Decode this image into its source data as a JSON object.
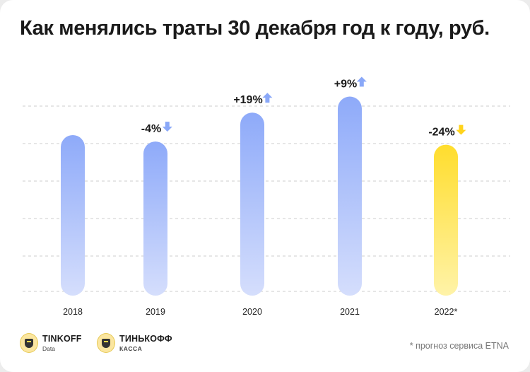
{
  "title": "Как менялись траты 30 декабря год к году, руб.",
  "footnote": "* прогноз сервиса ETNA",
  "logos": [
    {
      "icon": "tinkoff-shield-icon",
      "name": "TINKOFF",
      "sub": "Data"
    },
    {
      "icon": "tinkoff-shield-icon",
      "name": "ТИНЬКОФФ",
      "sub": "КАССА"
    }
  ],
  "colors": {
    "bar_top": "#8eaaf9",
    "bar_bottom": "#d5defc",
    "forecast_top": "#ffdd2d",
    "forecast_bottom": "#fff3a8",
    "up_arrow": "#8aa8f8",
    "down_arrow_blue": "#8aa8f8",
    "down_arrow_yellow": "#ffd31c",
    "grid": "#cccccc"
  },
  "chart_data": {
    "type": "bar",
    "categories": [
      "2018",
      "2019",
      "2020",
      "2021",
      "2022*"
    ],
    "values": [
      100,
      96,
      114,
      124,
      94
    ],
    "value_scale": "relative, 2018 = 100 (no y-axis values shown)",
    "change_labels": [
      "",
      "-4%",
      "+19%",
      "+9%",
      "-24%"
    ],
    "change_direction": [
      "",
      "down",
      "up",
      "up",
      "down"
    ],
    "forecast": [
      false,
      false,
      false,
      false,
      true
    ],
    "ylim": [
      0,
      126
    ],
    "grid": true,
    "legend": "none"
  }
}
